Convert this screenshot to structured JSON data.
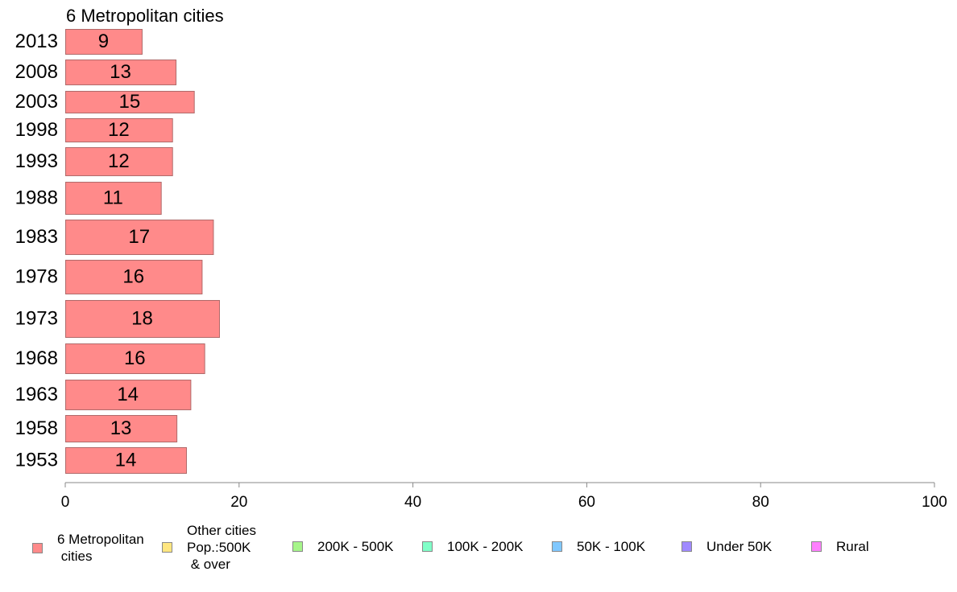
{
  "chart_data": {
    "type": "bar",
    "orientation": "horizontal",
    "title": "6 Metropolitan cities",
    "categories": [
      "2013",
      "2008",
      "2003",
      "1998",
      "1993",
      "1988",
      "1983",
      "1978",
      "1973",
      "1968",
      "1963",
      "1958",
      "1953"
    ],
    "series": [
      {
        "name": "6 Metropolitan\n cities",
        "color": "#ff8a8a",
        "values": [
          8.8,
          12.7,
          14.8,
          12.3,
          12.3,
          11.0,
          17.0,
          15.7,
          17.7,
          16.0,
          14.4,
          12.8,
          13.9
        ],
        "data_labels": [
          "9",
          "13",
          "15",
          "12",
          "12",
          "11",
          "17",
          "16",
          "18",
          "16",
          "14",
          "13",
          "14"
        ]
      }
    ],
    "xlim": [
      0,
      100
    ],
    "xticks": [
      "0",
      "20",
      "40",
      "60",
      "80",
      "100"
    ],
    "grid": false,
    "legend_position": "bottom",
    "legend": [
      {
        "label": "6 Metropolitan\n cities",
        "color": "#ff8a8a"
      },
      {
        "label": "Other cities\nPop.:500K\n & over",
        "color": "#ffe680"
      },
      {
        "label": "200K - 500K",
        "color": "#a6f58a"
      },
      {
        "label": "100K - 200K",
        "color": "#80ffc8"
      },
      {
        "label": "50K - 100K",
        "color": "#80c8ff"
      },
      {
        "label": "Under 50K",
        "color": "#a08aff"
      },
      {
        "label": "Rural",
        "color": "#ff80ff"
      }
    ]
  }
}
